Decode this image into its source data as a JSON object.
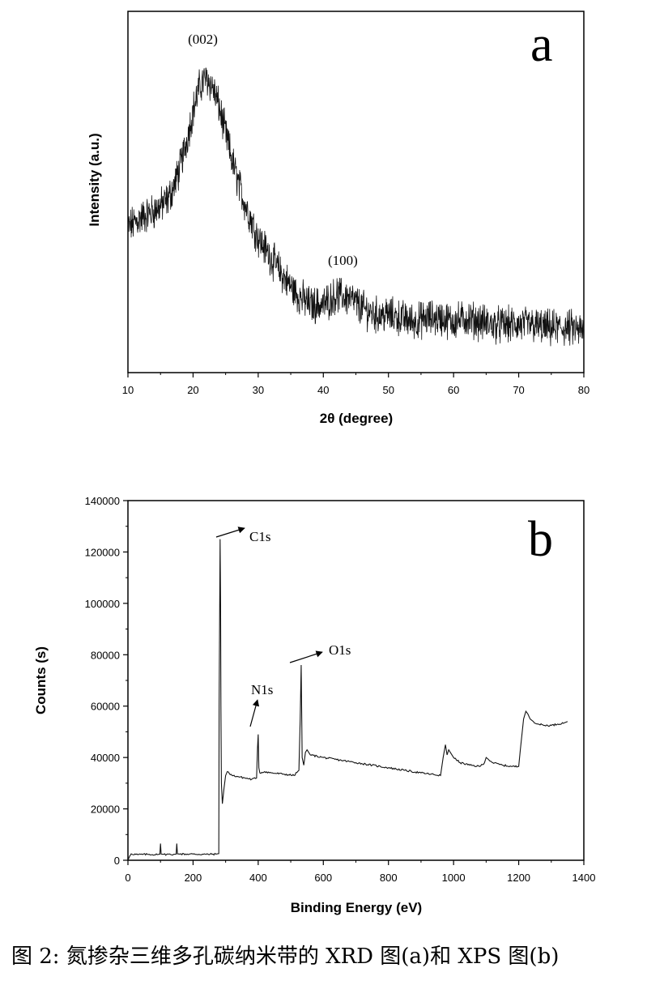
{
  "caption": "图 2: 氮掺杂三维多孔碳纳米带的 XRD 图(a)和 XPS 图(b)",
  "chart_data": [
    {
      "type": "line",
      "panel": "a",
      "xlabel": "2θ (degree)",
      "ylabel": "Intensity (a.u.)",
      "xlim": [
        10,
        80
      ],
      "xticks": [
        10,
        20,
        30,
        40,
        50,
        60,
        70,
        80
      ],
      "yticks_shown": false,
      "grid": false,
      "legend": "none",
      "annotations": [
        {
          "text": "(002)",
          "x": 21.5
        },
        {
          "text": "(100)",
          "x": 43
        }
      ],
      "series": [
        {
          "x": [
            10,
            12,
            14,
            16,
            17,
            18,
            19,
            20,
            21,
            22,
            23,
            24,
            25,
            26,
            27,
            28,
            29,
            30,
            32,
            34,
            36,
            38,
            40,
            42,
            44,
            46,
            48,
            50,
            52,
            54,
            56,
            58,
            60,
            62,
            64,
            66,
            68,
            70,
            72,
            74,
            76,
            78,
            80
          ],
          "y": [
            0.42,
            0.45,
            0.47,
            0.5,
            0.54,
            0.6,
            0.68,
            0.77,
            0.84,
            0.87,
            0.84,
            0.78,
            0.7,
            0.62,
            0.55,
            0.49,
            0.44,
            0.39,
            0.33,
            0.27,
            0.22,
            0.19,
            0.19,
            0.22,
            0.21,
            0.18,
            0.16,
            0.16,
            0.15,
            0.14,
            0.15,
            0.15,
            0.14,
            0.15,
            0.14,
            0.13,
            0.13,
            0.13,
            0.13,
            0.12,
            0.12,
            0.12,
            0.11
          ]
        }
      ]
    },
    {
      "type": "line",
      "panel": "b",
      "xlabel": "Binding Energy (eV)",
      "ylabel": "Counts (s)",
      "xlim": [
        0,
        1400
      ],
      "ylim": [
        0,
        140000
      ],
      "xticks": [
        0,
        200,
        400,
        600,
        800,
        1000,
        1200,
        1400
      ],
      "yticks": [
        0,
        20000,
        40000,
        60000,
        80000,
        100000,
        120000,
        140000
      ],
      "grid": false,
      "legend": "none",
      "annotations": [
        {
          "text": "C1s",
          "x": 285,
          "y": 125000
        },
        {
          "text": "N1s",
          "x": 400,
          "y": 49000
        },
        {
          "text": "O1s",
          "x": 532,
          "y": 76000
        }
      ],
      "series": [
        {
          "x": [
            0,
            5,
            10,
            30,
            60,
            90,
            98,
            100,
            102,
            110,
            140,
            148,
            150,
            152,
            160,
            200,
            240,
            270,
            279,
            280,
            283,
            284.5,
            285.5,
            287,
            290,
            295,
            300,
            305,
            320,
            340,
            360,
            380,
            395,
            398,
            400,
            402,
            405,
            420,
            440,
            480,
            510,
            525,
            529,
            532,
            535,
            540,
            545,
            550,
            560,
            600,
            650,
            700,
            750,
            800,
            850,
            900,
            960,
            968,
            975,
            980,
            985,
            990,
            1000,
            1020,
            1050,
            1080,
            1095,
            1100,
            1105,
            1120,
            1150,
            1180,
            1200,
            1205,
            1215,
            1222,
            1228,
            1235,
            1245,
            1260,
            1280,
            1300,
            1320,
            1340,
            1350
          ],
          "y": [
            0,
            1500,
            2500,
            2200,
            2300,
            2200,
            2400,
            6500,
            2400,
            2300,
            2300,
            2400,
            6500,
            2500,
            2400,
            2400,
            2300,
            2400,
            2600,
            60000,
            125000,
            100000,
            60000,
            30000,
            22000,
            28000,
            33000,
            34500,
            33000,
            32500,
            32000,
            31500,
            32000,
            44000,
            49000,
            36000,
            34000,
            34500,
            34000,
            33500,
            33000,
            35000,
            55000,
            76000,
            40000,
            37000,
            42000,
            43000,
            41000,
            40000,
            39000,
            38000,
            37000,
            36000,
            35000,
            34000,
            33000,
            40000,
            45000,
            41000,
            43000,
            42000,
            40000,
            38000,
            37000,
            36500,
            38000,
            40000,
            39500,
            38000,
            37000,
            36500,
            36500,
            43000,
            55000,
            58000,
            57000,
            55000,
            54000,
            53000,
            52500,
            52500,
            53000,
            53500,
            54000
          ]
        }
      ]
    }
  ]
}
